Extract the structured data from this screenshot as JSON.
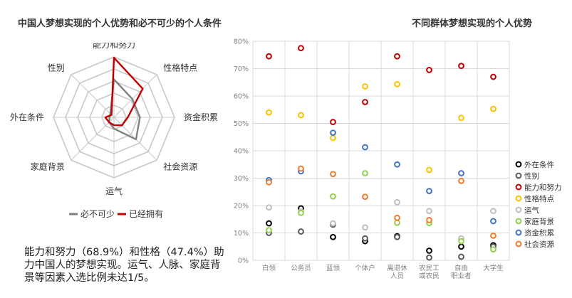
{
  "left_title": "中国人梦想实现的个人优势和必不可少的个人条件",
  "right_title": "不同群体梦想实现的个人优势",
  "summary": "能力和努力（68.9%）和性格（47.4%）助力中国人的梦想实现。运气、人脉、家庭背景等因素入选比例未达1/5。",
  "colors": {
    "grid": "#c8c8c8",
    "required": "#808080",
    "owned": "#c00000"
  },
  "chart_data": [
    {
      "type": "radar",
      "axes": [
        "能力和努力",
        "性格特点",
        "资金积累",
        "社会资源",
        "运气",
        "家庭背景",
        "外在条件",
        "性别"
      ],
      "max": 0.7,
      "rings": 5,
      "series": [
        {
          "name": "必不可少",
          "color": "#808080",
          "values": [
            0.44,
            0.3,
            0.3,
            0.36,
            0.13,
            0.08,
            0.05,
            0.06
          ]
        },
        {
          "name": "已经拥有",
          "color": "#c00000",
          "values": [
            0.69,
            0.47,
            0.16,
            0.13,
            0.09,
            0.08,
            0.1,
            0.04
          ]
        }
      ],
      "legend_position": "bottom"
    },
    {
      "type": "scatter",
      "categories": [
        "白领",
        "公务员",
        "蓝领",
        "个体户",
        "离退休人员",
        "农民工或农民",
        "自由职业者",
        "大学生"
      ],
      "category_lines": [
        [
          "白领"
        ],
        [
          "公务员"
        ],
        [
          "蓝领"
        ],
        [
          "个体户"
        ],
        [
          "离退休",
          "人员"
        ],
        [
          "农民工",
          "或农民"
        ],
        [
          "自由",
          "职业者"
        ],
        [
          "大学生"
        ]
      ],
      "ylim": [
        0,
        0.8
      ],
      "yticks": [
        "0%",
        "10%",
        "20%",
        "30%",
        "40%",
        "50%",
        "60%",
        "70%",
        "80%"
      ],
      "grid": true,
      "legend_position": "right",
      "series": [
        {
          "name": "外在条件",
          "color": "#000000",
          "values": [
            0.135,
            0.19,
            0.085,
            0.07,
            0.088,
            0.035,
            0.05,
            0.055
          ]
        },
        {
          "name": "性别",
          "color": "#595959",
          "values": [
            0.1,
            0.105,
            0.13,
            0.08,
            0.085,
            0.01,
            0.013,
            0.05
          ]
        },
        {
          "name": "能力和努力",
          "color": "#c00000",
          "values": [
            0.745,
            0.775,
            0.505,
            0.578,
            0.745,
            0.695,
            0.71,
            0.67
          ]
        },
        {
          "name": "性格特点",
          "color": "#ffc000",
          "values": [
            0.54,
            0.53,
            0.447,
            0.635,
            0.643,
            0.33,
            0.52,
            0.553
          ]
        },
        {
          "name": "运气",
          "color": "#bfbfbf",
          "values": [
            0.193,
            0.178,
            0.135,
            0.12,
            0.212,
            0.18,
            0.08,
            0.18
          ]
        },
        {
          "name": "家庭背景",
          "color": "#92d050",
          "values": [
            0.11,
            0.173,
            0.233,
            0.318,
            0.137,
            0.136,
            0.07,
            0.04
          ]
        },
        {
          "name": "资金积累",
          "color": "#4472c4",
          "values": [
            0.293,
            0.325,
            0.466,
            0.413,
            0.35,
            0.253,
            0.318,
            0.143
          ]
        },
        {
          "name": "社会资源",
          "color": "#ed7d31",
          "values": [
            0.285,
            0.335,
            0.315,
            0.232,
            0.155,
            0.147,
            0.29,
            0.09
          ]
        }
      ]
    }
  ]
}
